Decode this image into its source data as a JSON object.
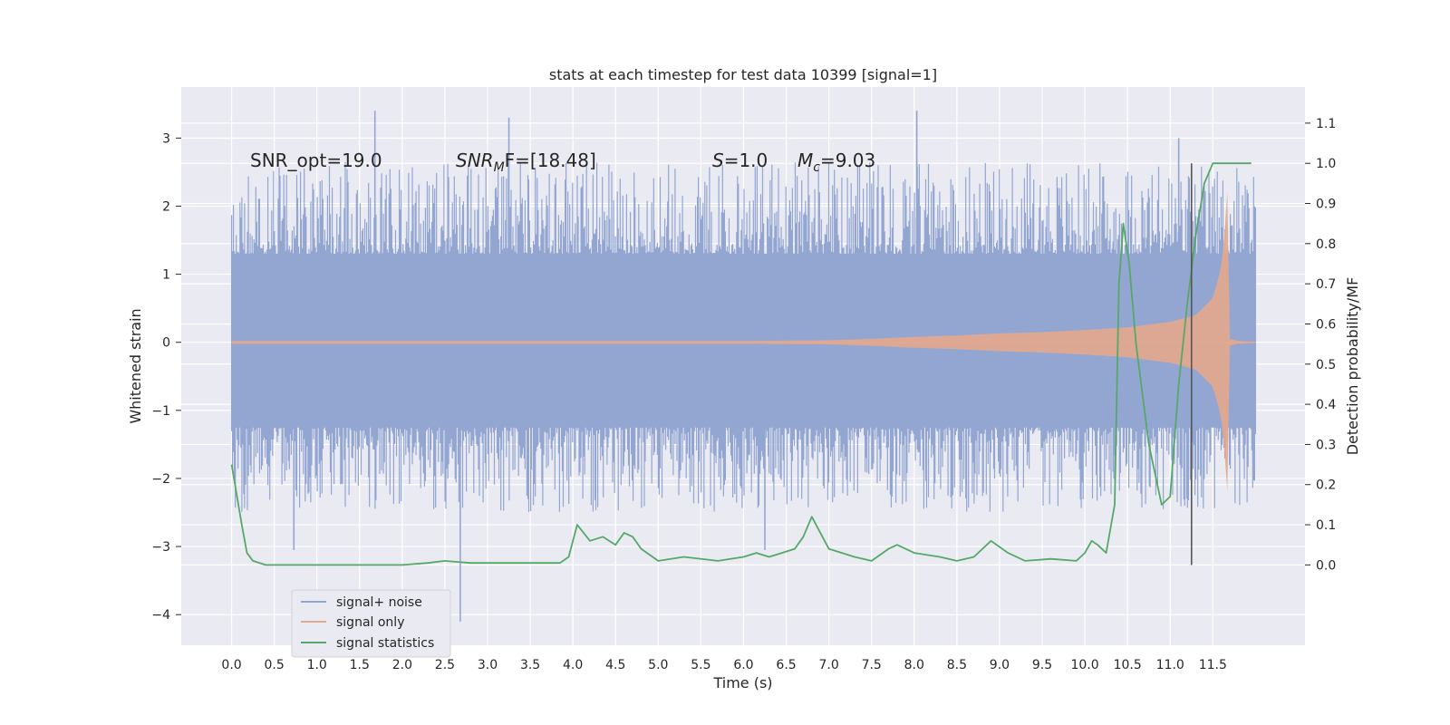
{
  "chart_data": {
    "type": "line",
    "title": "stats at each timestep for test data 10399 [signal=1]",
    "xlabel": "Time (s)",
    "ylabel": "Whitened strain",
    "ylabel_right": "Detection probability/MF",
    "xlim": [
      -0.59,
      12.58
    ],
    "ylim": [
      -4.45,
      3.75
    ],
    "ylim_right": [
      -0.2,
      1.19
    ],
    "x_ticks": [
      "0.0",
      "0.5",
      "1.0",
      "1.5",
      "2.0",
      "2.5",
      "3.0",
      "3.5",
      "4.0",
      "4.5",
      "5.0",
      "5.5",
      "6.0",
      "6.5",
      "7.0",
      "7.5",
      "8.0",
      "8.5",
      "9.0",
      "9.5",
      "10.0",
      "10.5",
      "11.0",
      "11.5"
    ],
    "y_ticks": [
      "−4",
      "−3",
      "−2",
      "−1",
      "0",
      "1",
      "2",
      "3"
    ],
    "y_ticks_right": [
      "0.0",
      "0.1",
      "0.2",
      "0.3",
      "0.4",
      "0.5",
      "0.6",
      "0.7",
      "0.8",
      "0.9",
      "1.0",
      "1.1"
    ],
    "grid": true,
    "legend_position": "lower-left",
    "annotations": {
      "snr_opt": "SNR_opt=19.0",
      "snr_mf_sym": "SNR",
      "snr_mf_sub": "M",
      "snr_mf_rest": "F=[18.48]",
      "s_sym": "S",
      "s_rest": "=1.0",
      "mc_sym": "M",
      "mc_sub": "c",
      "mc_rest": "=9.03"
    },
    "vertical_line_x": 11.25,
    "series": [
      {
        "name": "signal+ noise",
        "color": "#92a6d1",
        "axis": "left",
        "envelope": {
          "x": [
            0.0,
            1.0,
            2.0,
            3.0,
            4.0,
            5.0,
            6.0,
            7.0,
            8.0,
            9.0,
            10.0,
            10.5,
            11.0,
            11.5,
            12.0
          ],
          "upper": [
            1.3,
            1.3,
            1.3,
            1.3,
            1.3,
            1.3,
            1.3,
            1.3,
            1.3,
            1.3,
            1.3,
            1.3,
            1.3,
            1.3,
            1.3
          ],
          "lower": [
            -1.25,
            -1.25,
            -1.25,
            -1.25,
            -1.25,
            -1.25,
            -1.25,
            -1.25,
            -1.25,
            -1.25,
            -1.25,
            -1.25,
            -1.25,
            -1.25,
            -1.25
          ]
        },
        "notable_peaks": [
          {
            "x": 1.68,
            "y": 3.4
          },
          {
            "x": 3.25,
            "y": 3.3
          },
          {
            "x": 8.03,
            "y": 3.4
          },
          {
            "x": 11.1,
            "y": 3.0
          },
          {
            "x": 2.68,
            "y": -4.1
          },
          {
            "x": 0.73,
            "y": -3.05
          },
          {
            "x": 6.25,
            "y": -3.05
          }
        ]
      },
      {
        "name": "signal only",
        "color": "#e4a88d",
        "axis": "left",
        "envelope": {
          "x": [
            0.0,
            6.0,
            7.0,
            7.5,
            8.0,
            8.5,
            9.0,
            9.5,
            10.0,
            10.5,
            11.0,
            11.3,
            11.5,
            11.6,
            11.65,
            11.68,
            11.7,
            11.8,
            12.0
          ],
          "amplitude": [
            0.02,
            0.02,
            0.03,
            0.05,
            0.08,
            0.1,
            0.13,
            0.15,
            0.18,
            0.22,
            0.3,
            0.4,
            0.65,
            1.1,
            1.8,
            2.4,
            0.05,
            0.02,
            0.01
          ]
        }
      },
      {
        "name": "signal statistics",
        "color": "#55a868",
        "axis": "right",
        "x": [
          0.0,
          0.12,
          0.18,
          0.25,
          0.4,
          0.6,
          1.0,
          1.5,
          2.0,
          2.3,
          2.5,
          2.8,
          3.0,
          3.5,
          3.85,
          3.95,
          4.05,
          4.2,
          4.35,
          4.5,
          4.6,
          4.7,
          4.8,
          5.0,
          5.3,
          5.7,
          6.0,
          6.15,
          6.3,
          6.45,
          6.6,
          6.7,
          6.8,
          6.9,
          7.0,
          7.3,
          7.5,
          7.7,
          7.8,
          8.0,
          8.3,
          8.5,
          8.7,
          8.9,
          9.1,
          9.3,
          9.6,
          9.9,
          10.0,
          10.08,
          10.15,
          10.25,
          10.35,
          10.4,
          10.45,
          10.52,
          10.6,
          10.75,
          10.9,
          11.0,
          11.1,
          11.2,
          11.3,
          11.4,
          11.5,
          11.6,
          11.95
        ],
        "y": [
          0.25,
          0.1,
          0.03,
          0.01,
          0.0,
          0.0,
          0.0,
          0.0,
          0.0,
          0.005,
          0.01,
          0.005,
          0.005,
          0.005,
          0.005,
          0.02,
          0.1,
          0.06,
          0.07,
          0.05,
          0.08,
          0.07,
          0.04,
          0.01,
          0.02,
          0.01,
          0.02,
          0.03,
          0.02,
          0.03,
          0.04,
          0.07,
          0.12,
          0.08,
          0.04,
          0.02,
          0.01,
          0.04,
          0.05,
          0.03,
          0.02,
          0.01,
          0.02,
          0.06,
          0.03,
          0.01,
          0.015,
          0.01,
          0.03,
          0.06,
          0.05,
          0.03,
          0.15,
          0.7,
          0.85,
          0.75,
          0.55,
          0.3,
          0.15,
          0.17,
          0.45,
          0.65,
          0.82,
          0.95,
          1.0,
          1.0,
          1.0
        ]
      }
    ]
  }
}
